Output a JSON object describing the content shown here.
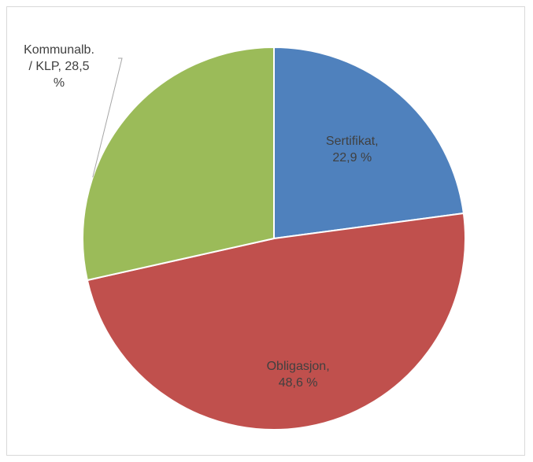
{
  "chart_data": {
    "type": "pie",
    "title": "",
    "slices": [
      {
        "label_lines": [
          "Sertifikat,",
          "22,9 %"
        ],
        "value": 22.9,
        "color": "#4f81bd"
      },
      {
        "label_lines": [
          "Obligasjon,",
          "48,6 %"
        ],
        "value": 48.6,
        "color": "#c0504d"
      },
      {
        "label_lines": [
          "Kommunalb.",
          "/ KLP, 28,5",
          "%"
        ],
        "value": 28.5,
        "color": "#9bbb59"
      }
    ],
    "legend": "none",
    "data_labels": "category, value"
  }
}
